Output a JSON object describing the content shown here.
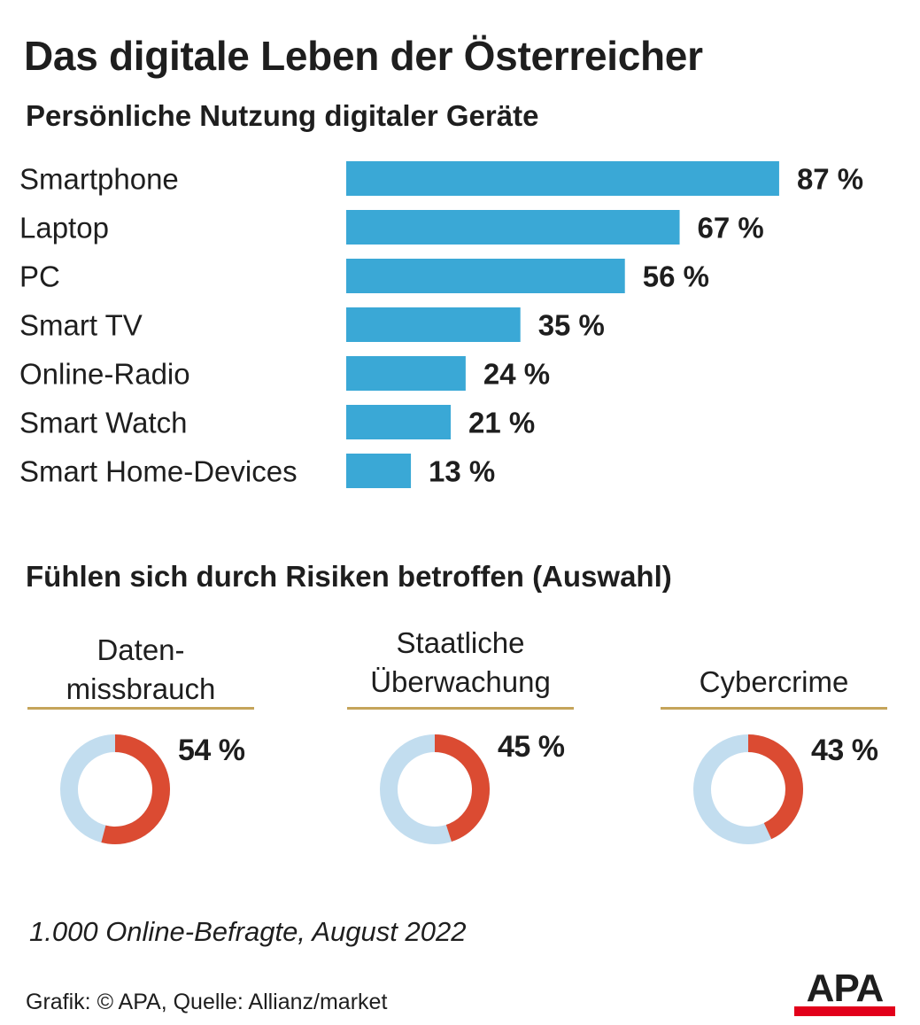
{
  "title": "Das digitale Leben der Österreicher",
  "subtitle": "Persönliche Nutzung digitaler Geräte",
  "section2_title": "Fühlen sich durch Risiken betroffen (Auswahl)",
  "risks": [
    {
      "label": "Daten-\nmissbrauch",
      "value": 54,
      "pct_label": "54 %"
    },
    {
      "label": "Staatliche\nÜberwachung",
      "value": 45,
      "pct_label": "45 %"
    },
    {
      "label": "Cybercrime",
      "value": 43,
      "pct_label": "43 %"
    }
  ],
  "colors": {
    "bar": "#3aa8d6",
    "donut_fill": "#db4b32",
    "donut_track": "#c2ddef",
    "rule": "#c5a45a",
    "logo_red": "#e2001a"
  },
  "chart_data": [
    {
      "type": "bar",
      "orientation": "horizontal",
      "title": "Persönliche Nutzung digitaler Geräte",
      "categories": [
        "Smartphone",
        "Laptop",
        "PC",
        "Smart TV",
        "Online-Radio",
        "Smart Watch",
        "Smart Home-Devices"
      ],
      "values": [
        87,
        67,
        56,
        35,
        24,
        21,
        13
      ],
      "value_labels": [
        "87 %",
        "67 %",
        "56 %",
        "35 %",
        "24 %",
        "21 %",
        "13 %"
      ],
      "unit": "%",
      "xlim": [
        0,
        100
      ],
      "grid": false
    },
    {
      "type": "pie",
      "title": "Fühlen sich durch Risiken betroffen (Auswahl)",
      "categories": [
        "Daten-missbrauch",
        "Staatliche Überwachung",
        "Cybercrime"
      ],
      "values": [
        54,
        45,
        43
      ],
      "unit": "%"
    }
  ],
  "footnote": "1.000 Online-Befragte, August 2022",
  "credit": "Grafik: © APA, Quelle: Allianz/market",
  "logo_text": "APA"
}
